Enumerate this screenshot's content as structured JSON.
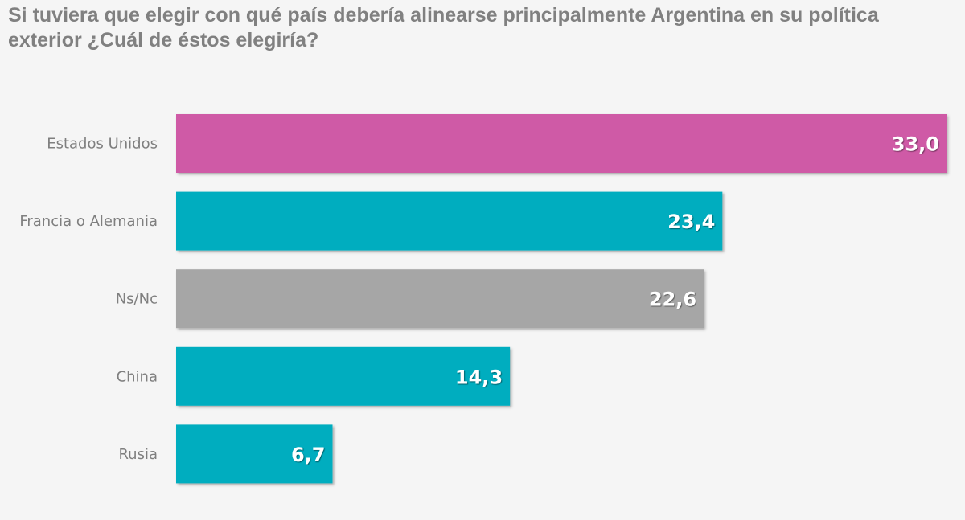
{
  "chart_data": {
    "type": "bar",
    "orientation": "horizontal",
    "title": "Si tuviera que elegir con qué país debería alinearse principalmente Argentina en su política exterior ¿Cuál de éstos elegiría?",
    "categories": [
      "Estados Unidos",
      "Francia o Alemania",
      "Ns/Nc",
      "China",
      "Rusia"
    ],
    "values": [
      33.0,
      23.4,
      22.6,
      14.3,
      6.7
    ],
    "labels": [
      "33,0",
      "23,4",
      "22,6",
      "14,3",
      "6,7"
    ],
    "colors": [
      "#cf5aa6",
      "#00adbf",
      "#a6a6a6",
      "#00adbf",
      "#00adbf"
    ],
    "xlim": [
      0,
      33
    ],
    "xlabel": "",
    "ylabel": "",
    "grid": false
  }
}
